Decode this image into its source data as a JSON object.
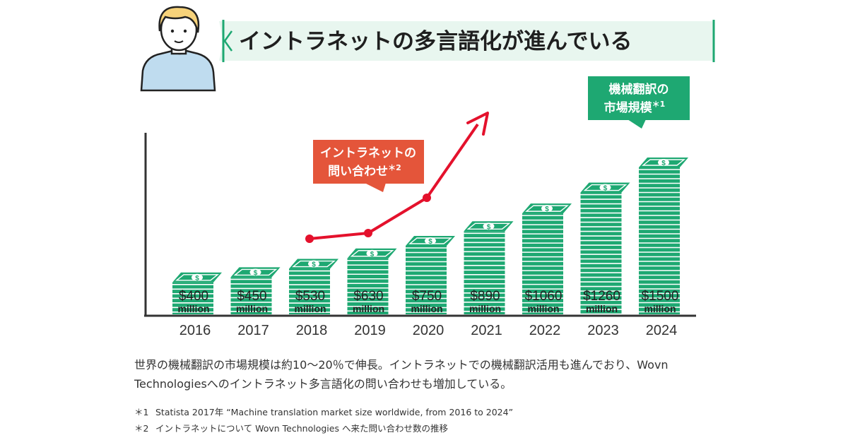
{
  "title": "イントラネットの多言語化が進んでいる",
  "colors": {
    "green": "#1ea872",
    "green_light": "#e8f6ef",
    "red": "#e4112c",
    "orange": "#e4553a",
    "axis": "#333333"
  },
  "icons": {
    "person": "person-icon",
    "money": "dollar-bill-icon"
  },
  "callout_market": {
    "line1": "機械翻訳の",
    "line2": "市場規模",
    "note": "＊1"
  },
  "callout_inquiry": {
    "line1": "イントラネットの",
    "line2": "問い合わせ",
    "note": "＊2"
  },
  "chart_data": {
    "type": "bar",
    "categories": [
      "2016",
      "2017",
      "2018",
      "2019",
      "2020",
      "2021",
      "2022",
      "2023",
      "2024"
    ],
    "series": [
      {
        "name": "機械翻訳の市場規模",
        "values": [
          400,
          450,
          530,
          630,
          750,
          890,
          1060,
          1260,
          1500
        ],
        "labels": [
          "$400",
          "$450",
          "$530",
          "$630",
          "$750",
          "$890",
          "$1060",
          "$1260",
          "$1500"
        ],
        "unit": "million"
      },
      {
        "name": "イントラネットの問い合わせ",
        "type": "line",
        "x": [
          "2018",
          "2019",
          "2020"
        ],
        "trend": "rising, continues upward after 2020"
      }
    ]
  },
  "description": "世界の機械翻訳の市場規模は約10〜20％で伸長。イントラネットでの機械翻訳活用も進んでおり、Wovn Technologiesへのイントラネット多言語化の問い合わせも増加している。",
  "notes": [
    {
      "mark": "＊1",
      "text": "Statista 2017年 “Machine translation market size worldwide, from 2016 to 2024”"
    },
    {
      "mark": "＊2",
      "text": "イントラネットについて Wovn Technologies へ来た問い合わせ数の推移"
    }
  ]
}
